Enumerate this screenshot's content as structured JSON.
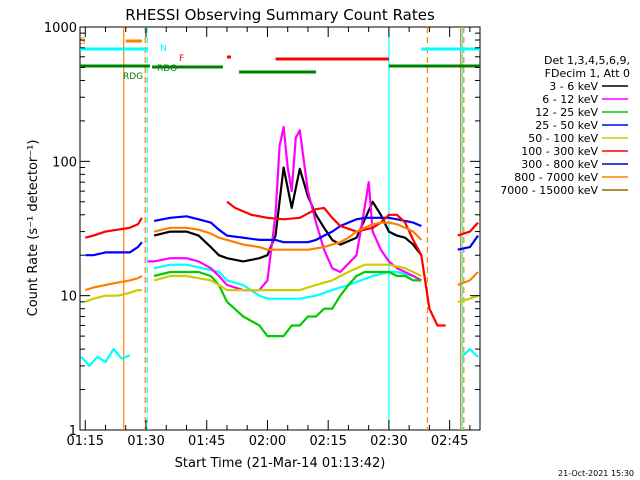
{
  "chart_data": {
    "type": "line",
    "title": "RHESSI Observing Summary Count Rates",
    "xlabel": "Start Time (21-Mar-14 01:13:42)",
    "ylabel": "Count Rate (s⁻¹ detector⁻¹)",
    "y_scale": "log",
    "ylim": [
      1,
      1000
    ],
    "xlim_minutes": [
      73.7,
      172.5
    ],
    "x_ticks": [
      {
        "label": "01:15",
        "min": 75
      },
      {
        "label": "01:30",
        "min": 90
      },
      {
        "label": "01:45",
        "min": 105
      },
      {
        "label": "02:00",
        "min": 120
      },
      {
        "label": "02:15",
        "min": 135
      },
      {
        "label": "02:30",
        "min": 150
      },
      {
        "label": "02:45",
        "min": 165
      }
    ],
    "y_ticks": [
      {
        "label": "1",
        "v": 1
      },
      {
        "label": "10",
        "v": 10
      },
      {
        "label": "100",
        "v": 100
      },
      {
        "label": "1000",
        "v": 1000
      }
    ],
    "legend": {
      "placement": "right",
      "header": [
        "Det 1,3,4,5,6,9,",
        "FDecim 1, Att 0"
      ]
    },
    "series": [
      {
        "name": "3 - 6 keV",
        "color": "#000000",
        "x": [
          75,
          77,
          80,
          83,
          86,
          88,
          90.5,
          92,
          96,
          100,
          103,
          106,
          108,
          110,
          114,
          118,
          120,
          122,
          124,
          126,
          128,
          130,
          132,
          134,
          136,
          138,
          142,
          146,
          148,
          150,
          152,
          154,
          156,
          158,
          160,
          162,
          164,
          167,
          170,
          172
        ],
        "y": [
          null,
          null,
          null,
          null,
          null,
          null,
          null,
          28,
          30,
          30,
          28,
          23,
          20,
          19,
          18,
          19,
          20,
          28,
          90,
          45,
          88,
          55,
          40,
          32,
          26,
          24,
          27,
          50,
          40,
          30,
          28,
          27,
          24,
          20,
          null,
          null,
          null,
          null,
          null,
          null
        ]
      },
      {
        "name": "6 - 12 keV",
        "color": "#ff00ff",
        "x": [
          90.5,
          92,
          96,
          100,
          103,
          106,
          108,
          110,
          114,
          118,
          120,
          122,
          123,
          124,
          125,
          126,
          127,
          128,
          129,
          130,
          132,
          134,
          136,
          138,
          142,
          144,
          145,
          146,
          148,
          150,
          152,
          154,
          156,
          158
        ],
        "y": [
          18,
          18,
          19,
          19,
          18,
          16,
          14,
          12,
          11,
          11,
          13,
          40,
          130,
          180,
          90,
          60,
          150,
          170,
          100,
          60,
          35,
          22,
          16,
          15,
          20,
          45,
          70,
          30,
          22,
          18,
          16,
          15,
          14,
          13
        ]
      },
      {
        "name": "12 - 25 keV",
        "color": "#00cc00",
        "x": [
          75,
          77,
          80,
          83,
          86,
          88,
          90.5,
          92,
          96,
          100,
          103,
          106,
          108,
          110,
          114,
          118,
          120,
          122,
          124,
          126,
          128,
          130,
          132,
          134,
          136,
          138,
          140,
          142,
          144,
          146,
          148,
          150,
          152,
          154,
          156,
          158
        ],
        "y": [
          null,
          null,
          null,
          null,
          null,
          null,
          null,
          14,
          15,
          15,
          15,
          14,
          12,
          9,
          7,
          6,
          5,
          5,
          5,
          6,
          6,
          7,
          7,
          8,
          8,
          10,
          12,
          14,
          15,
          15,
          15,
          15,
          14,
          14,
          13,
          13
        ]
      },
      {
        "name": "25 - 50 keV",
        "color": "#0000ff",
        "x": [
          75,
          77,
          80,
          83,
          86,
          88,
          89,
          90.5,
          92,
          96,
          100,
          103,
          106,
          108,
          110,
          114,
          118,
          120,
          122,
          124,
          126,
          128,
          130,
          132,
          134,
          136,
          138,
          140,
          142,
          144,
          146,
          148,
          150,
          152,
          154,
          156,
          158,
          160,
          162,
          164,
          166,
          167,
          170,
          172
        ],
        "y": [
          20,
          20,
          21,
          21,
          21,
          23,
          25,
          null,
          36,
          38,
          39,
          37,
          35,
          31,
          28,
          27,
          26,
          26,
          26,
          25,
          25,
          25,
          25,
          26,
          28,
          30,
          33,
          35,
          37,
          38,
          38,
          38,
          38,
          37,
          36,
          35,
          33,
          null,
          null,
          null,
          null,
          22,
          23,
          28
        ]
      },
      {
        "name": "50 - 100 keV",
        "color": "#cccc00",
        "x": [
          75,
          77,
          80,
          83,
          86,
          88,
          89,
          90.5,
          92,
          96,
          100,
          103,
          106,
          108,
          110,
          114,
          118,
          120,
          122,
          124,
          126,
          128,
          130,
          132,
          134,
          136,
          138,
          140,
          142,
          144,
          146,
          148,
          150,
          152,
          154,
          156,
          158,
          160,
          162,
          164,
          166,
          167,
          170,
          172
        ],
        "y": [
          9,
          9.5,
          10,
          10,
          10.5,
          11,
          11,
          null,
          13,
          14,
          14,
          13.5,
          13,
          12,
          11,
          11,
          11,
          11,
          11,
          11,
          11,
          11,
          11.5,
          12,
          12.5,
          13,
          14,
          15,
          16,
          17,
          17,
          17,
          17,
          16.5,
          16,
          15,
          14,
          null,
          null,
          2,
          null,
          9,
          9.5,
          10
        ]
      },
      {
        "name": "100 - 300 keV",
        "color": "#ff0000",
        "x": [
          75,
          77,
          80,
          83,
          86,
          88,
          89,
          90.5,
          110,
          112,
          116,
          120,
          124,
          128,
          132,
          134,
          136,
          138,
          142,
          146,
          148,
          150,
          152,
          154,
          156,
          158,
          160,
          162,
          164,
          166,
          167,
          170,
          172
        ],
        "y": [
          27,
          28,
          30,
          31,
          32,
          34,
          38,
          null,
          50,
          45,
          40,
          38,
          37,
          38,
          44,
          45,
          38,
          33,
          30,
          32,
          35,
          40,
          40,
          35,
          26,
          20,
          8,
          6,
          6,
          null,
          28,
          30,
          35
        ]
      },
      {
        "name": "300 - 800 keV",
        "color": "#0000cc",
        "x": [],
        "y": []
      },
      {
        "name": "800 - 7000 keV",
        "color": "#ff8000",
        "x": [
          75,
          77,
          80,
          83,
          86,
          88,
          89,
          90.5,
          92,
          96,
          100,
          103,
          106,
          108,
          110,
          114,
          118,
          120,
          122,
          124,
          126,
          128,
          130,
          132,
          134,
          136,
          138,
          140,
          142,
          144,
          146,
          148,
          150,
          152,
          154,
          156,
          158,
          160,
          162,
          164,
          166,
          167,
          170,
          172
        ],
        "y": [
          11,
          11.5,
          12,
          12.5,
          13,
          13.5,
          14,
          null,
          30,
          32,
          32,
          31,
          29,
          27,
          26,
          24,
          23,
          22,
          22,
          22,
          22,
          22,
          22,
          22.5,
          23,
          24,
          25,
          27,
          30,
          32,
          34,
          35,
          35,
          34,
          32,
          30,
          26,
          null,
          null,
          null,
          null,
          12,
          13,
          15
        ]
      },
      {
        "name": "7000 - 15000 keV",
        "color": "#996600",
        "x": [],
        "y": []
      }
    ],
    "atten_cyan": {
      "color": "#00ffff",
      "x": [
        74,
        76,
        78,
        80,
        82,
        84,
        86,
        90.5,
        92,
        96,
        100,
        104,
        108,
        110,
        114,
        118,
        120,
        124,
        128,
        132,
        136,
        140,
        146,
        150,
        152,
        154,
        156,
        158,
        160,
        162,
        164,
        166,
        168,
        170,
        172
      ],
      "y": [
        3.5,
        3,
        3.5,
        3.2,
        4,
        3.4,
        3.6,
        null,
        16,
        17,
        17,
        16,
        15,
        13,
        12,
        10,
        9.5,
        9.5,
        9.5,
        10,
        11,
        12,
        14,
        15,
        15,
        14.5,
        14,
        13,
        null,
        null,
        null,
        null,
        3.5,
        4,
        3.5
      ]
    },
    "segments": [
      {
        "label": "S",
        "color": "#ff8000",
        "level": "S",
        "from": 85,
        "to": 89
      },
      {
        "label": "N",
        "color": "#00ffff",
        "level": "N",
        "from": 73.7,
        "to": 90.5
      },
      {
        "label": "N",
        "color": "#00ffff",
        "level": "N",
        "from": 158,
        "to": 172.5
      },
      {
        "label": "F",
        "color": "#ff0000",
        "level": "F",
        "from": 110,
        "to": 111
      },
      {
        "label": "F",
        "color": "#ff0000",
        "level": "F2",
        "from": 122,
        "to": 150
      },
      {
        "label": "RDO",
        "color": "#008000",
        "level": "RDO",
        "from": 91.5,
        "to": 109
      },
      {
        "label": "RDG",
        "color": "#008000",
        "level": "RDG",
        "from": 73.7,
        "to": 91
      },
      {
        "label": "RDG",
        "color": "#008000",
        "level": "RDG2",
        "from": 113,
        "to": 132
      },
      {
        "label": "RDG",
        "color": "#008000",
        "level": "RDG3",
        "from": 150,
        "to": 172.5
      }
    ],
    "vlines": [
      {
        "min": 84.5,
        "color": "#ff8000",
        "style": "solid"
      },
      {
        "min": 89.8,
        "color": "#ff8000",
        "style": "dashed"
      },
      {
        "min": 90.3,
        "color": "#00ffff",
        "style": "dashed"
      },
      {
        "min": 150.0,
        "color": "#00ffff",
        "style": "solid"
      },
      {
        "min": 159.5,
        "color": "#ff8000",
        "style": "dashed"
      },
      {
        "min": 167.7,
        "color": "#ff8000",
        "style": "solid"
      },
      {
        "min": 168.1,
        "color": "#00ffff",
        "style": "solid"
      },
      {
        "min": 168.5,
        "color": "#ff8000",
        "style": "dashed"
      }
    ],
    "footer_stamp": "21-Oct-2021 15:30"
  }
}
